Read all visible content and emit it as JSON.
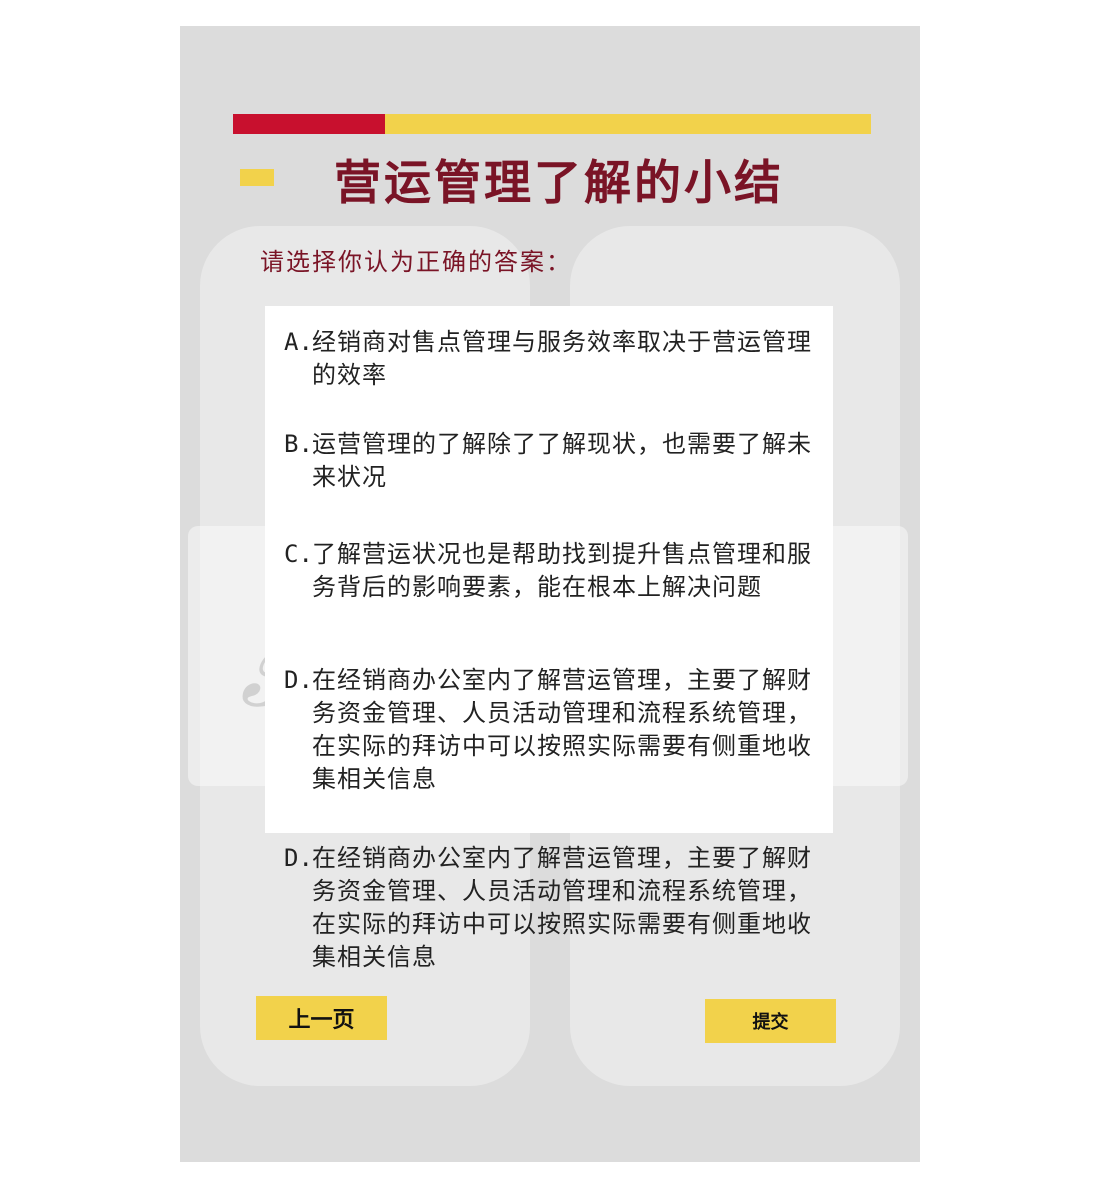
{
  "title": "营运管理了解的小结",
  "prompt": "请选择你认为正确的答案：",
  "options": [
    {
      "key": "A.",
      "text": "经销商对售点管理与服务效率取决于营运管理的效率"
    },
    {
      "key": "B.",
      "text": "运营管理的了解除了了解现状，也需要了解未来状况"
    },
    {
      "key": "C.",
      "text": "了解营运状况也是帮助找到提升售点管理和服务背后的影响要素，能在根本上解决问题"
    },
    {
      "key": "D.",
      "text": "在经销商办公室内了解营运管理，主要了解财务资金管理、人员活动管理和流程系统管理，在实际的拜访中可以按照实际需要有侧重地收集相关信息"
    },
    {
      "key": "D.",
      "text": "在经销商办公室内了解营运管理，主要了解财务资金管理、人员活动管理和流程系统管理，在实际的拜访中可以按照实际需要有侧重地收集相关信息"
    }
  ],
  "buttons": {
    "prev": "上一页",
    "submit": "提交"
  },
  "colors": {
    "accent_red": "#c8102e",
    "accent_yellow": "#f2d24b",
    "title_color": "#7a1426",
    "panel_bg": "#dcdcdc"
  }
}
